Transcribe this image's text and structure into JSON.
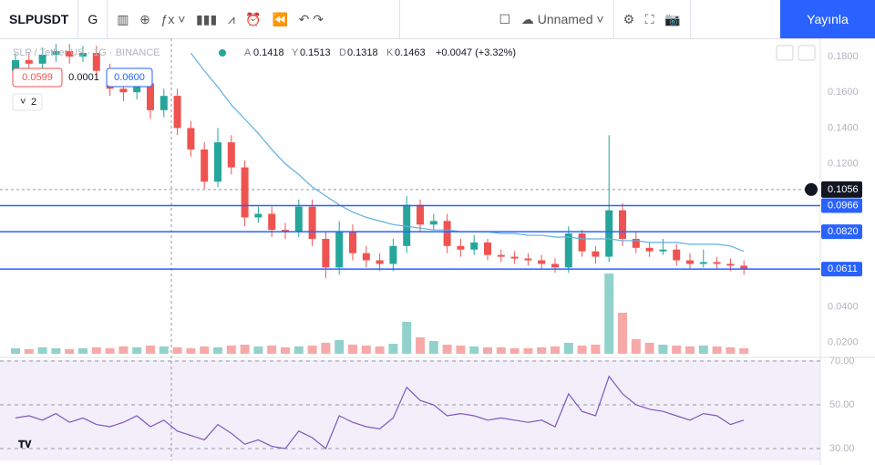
{
  "toolbar": {
    "symbol": "SLPUSDT",
    "interval": "G",
    "layout_name": "Unnamed",
    "publish": "Yayınla"
  },
  "legend": {
    "title": "SLP / Tether US · 1G · BINANCE",
    "o_label": "A",
    "o": "0.1418",
    "h_label": "Y",
    "h": "0.1513",
    "l_label": "D",
    "l": "0.1318",
    "c_label": "K",
    "c": "0.1463",
    "change": "+0.0047 (+3.32%)"
  },
  "order": {
    "sell": "0.0599",
    "spread": "0.0001",
    "buy": "0.0600",
    "indicators": "2"
  },
  "chart_data": {
    "type": "candlestick",
    "ylim": [
      0.0127,
      0.1902
    ],
    "yticks": [
      {
        "value": 0.18,
        "label": "0.1800"
      },
      {
        "value": 0.16,
        "label": "0.1600"
      },
      {
        "value": 0.14,
        "label": "0.1400"
      },
      {
        "value": 0.12,
        "label": "0.1200"
      },
      {
        "value": 0.04,
        "label": "0.0400"
      },
      {
        "value": 0.02,
        "label": "0.0200"
      }
    ],
    "levels": [
      {
        "value": 0.0966,
        "label": "0.0966"
      },
      {
        "value": 0.082,
        "label": "0.0820"
      },
      {
        "value": 0.0611,
        "label": "0.0611"
      }
    ],
    "crosshair": {
      "value": 0.1056,
      "label": "0.1056"
    },
    "up_color": "#26a69a",
    "down_color": "#ef5350",
    "ma_color": "#5fb0e0",
    "level_color": "#2962ff",
    "open": [
      0.172,
      0.178,
      0.176,
      0.181,
      0.183,
      0.18,
      0.182,
      0.172,
      0.162,
      0.16,
      0.165,
      0.15,
      0.158,
      0.14,
      0.128,
      0.11,
      0.132,
      0.118,
      0.09,
      0.092,
      0.083,
      0.082,
      0.096,
      0.078,
      0.062,
      0.082,
      0.07,
      0.066,
      0.064,
      0.074,
      0.097,
      0.086,
      0.088,
      0.074,
      0.072,
      0.076,
      0.069,
      0.068,
      0.067,
      0.066,
      0.064,
      0.062,
      0.081,
      0.071,
      0.068,
      0.094,
      0.078,
      0.073,
      0.071,
      0.072,
      0.066,
      0.064,
      0.065,
      0.064,
      0.063
    ],
    "high": [
      0.182,
      0.182,
      0.185,
      0.187,
      0.187,
      0.186,
      0.186,
      0.176,
      0.166,
      0.169,
      0.169,
      0.162,
      0.162,
      0.144,
      0.132,
      0.14,
      0.136,
      0.122,
      0.096,
      0.096,
      0.087,
      0.1,
      0.1,
      0.082,
      0.088,
      0.086,
      0.074,
      0.07,
      0.078,
      0.102,
      0.1,
      0.092,
      0.092,
      0.078,
      0.08,
      0.078,
      0.072,
      0.071,
      0.07,
      0.069,
      0.067,
      0.085,
      0.083,
      0.074,
      0.136,
      0.098,
      0.082,
      0.076,
      0.078,
      0.075,
      0.07,
      0.072,
      0.068,
      0.067,
      0.066
    ],
    "low": [
      0.168,
      0.172,
      0.172,
      0.177,
      0.176,
      0.177,
      0.168,
      0.158,
      0.155,
      0.156,
      0.145,
      0.146,
      0.136,
      0.124,
      0.106,
      0.107,
      0.114,
      0.085,
      0.087,
      0.079,
      0.078,
      0.079,
      0.074,
      0.056,
      0.058,
      0.066,
      0.062,
      0.06,
      0.06,
      0.07,
      0.082,
      0.083,
      0.07,
      0.068,
      0.069,
      0.066,
      0.065,
      0.064,
      0.063,
      0.061,
      0.059,
      0.059,
      0.068,
      0.064,
      0.065,
      0.074,
      0.07,
      0.068,
      0.069,
      0.063,
      0.061,
      0.062,
      0.061,
      0.06,
      0.058
    ],
    "close": [
      0.178,
      0.176,
      0.181,
      0.183,
      0.18,
      0.182,
      0.172,
      0.162,
      0.16,
      0.165,
      0.15,
      0.158,
      0.14,
      0.128,
      0.11,
      0.132,
      0.118,
      0.09,
      0.092,
      0.083,
      0.082,
      0.096,
      0.078,
      0.062,
      0.082,
      0.07,
      0.066,
      0.064,
      0.074,
      0.097,
      0.086,
      0.088,
      0.074,
      0.072,
      0.076,
      0.069,
      0.068,
      0.067,
      0.066,
      0.064,
      0.062,
      0.081,
      0.071,
      0.068,
      0.094,
      0.078,
      0.073,
      0.071,
      0.072,
      0.066,
      0.064,
      0.065,
      0.064,
      0.063,
      0.0611
    ],
    "ma": [
      null,
      null,
      null,
      null,
      null,
      null,
      null,
      null,
      null,
      null,
      null,
      null,
      null,
      0.182,
      0.172,
      0.163,
      0.153,
      0.145,
      0.137,
      0.128,
      0.12,
      0.114,
      0.107,
      0.102,
      0.097,
      0.093,
      0.09,
      0.088,
      0.086,
      0.085,
      0.084,
      0.083,
      0.083,
      0.082,
      0.082,
      0.082,
      0.081,
      0.081,
      0.08,
      0.08,
      0.079,
      0.079,
      0.078,
      0.078,
      0.078,
      0.077,
      0.077,
      0.076,
      0.076,
      0.076,
      0.075,
      0.075,
      0.075,
      0.074,
      0.071
    ],
    "volume": [
      6,
      5,
      7,
      6,
      5,
      6,
      7,
      6,
      8,
      7,
      9,
      8,
      7,
      6,
      8,
      7,
      9,
      10,
      8,
      9,
      7,
      8,
      9,
      12,
      15,
      10,
      9,
      8,
      11,
      35,
      18,
      14,
      10,
      9,
      8,
      7,
      7,
      6,
      6,
      7,
      8,
      12,
      9,
      10,
      88,
      45,
      16,
      12,
      10,
      9,
      8,
      9,
      8,
      7,
      6
    ],
    "rsi": [
      44,
      45,
      43,
      46,
      42,
      44,
      41,
      40,
      42,
      45,
      40,
      43,
      38,
      36,
      34,
      41,
      37,
      32,
      34,
      31,
      30,
      38,
      35,
      30,
      45,
      42,
      40,
      39,
      44,
      58,
      52,
      50,
      45,
      46,
      45,
      43,
      44,
      43,
      42,
      43,
      40,
      55,
      47,
      45,
      63,
      55,
      50,
      48,
      47,
      45,
      43,
      46,
      45,
      41,
      43
    ],
    "rsi_color": "#7e57c2",
    "rsi_yticks": [
      {
        "value": 70,
        "label": "70.00"
      },
      {
        "value": 50,
        "label": "50.00"
      },
      {
        "value": 30,
        "label": "30.00"
      }
    ]
  }
}
